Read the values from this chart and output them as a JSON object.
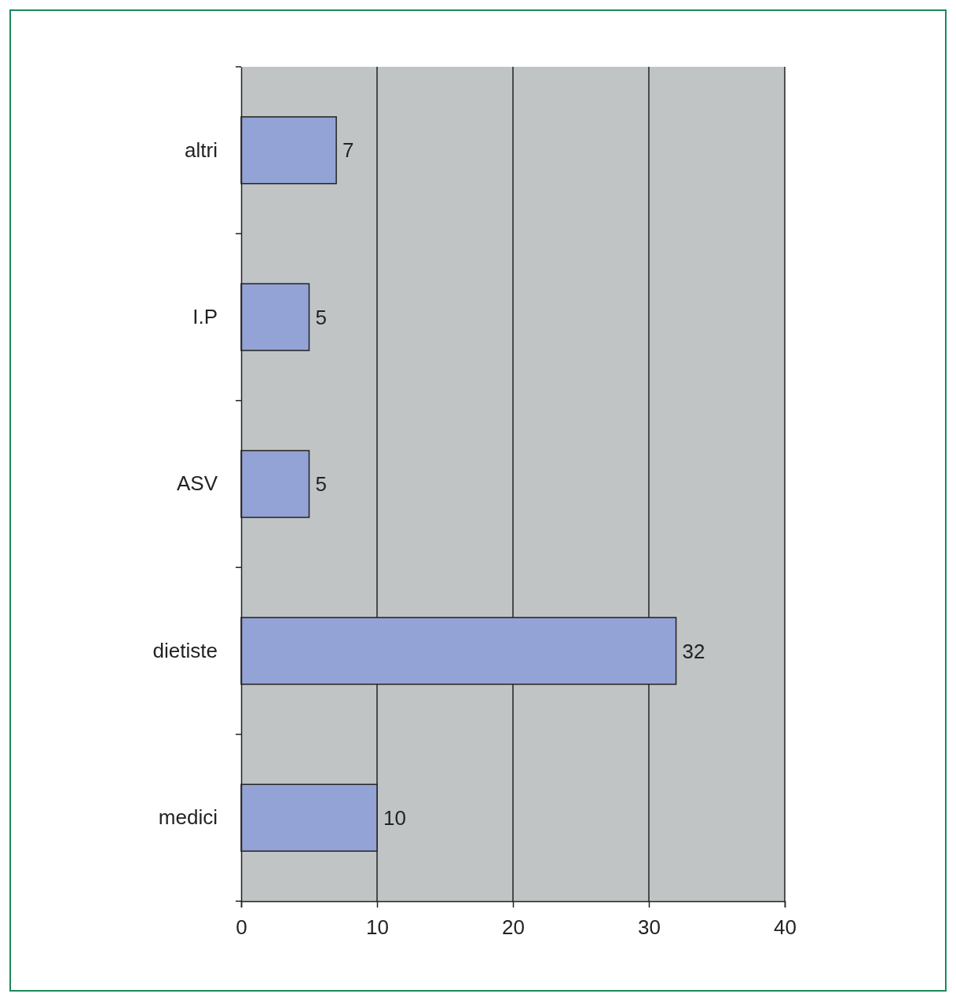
{
  "chart_data": {
    "type": "bar",
    "orientation": "horizontal",
    "categories": [
      "altri",
      "I.P",
      "ASV",
      "dietiste",
      "medici"
    ],
    "values": [
      7,
      5,
      5,
      32,
      10
    ],
    "color": "#94a3d6",
    "xlim": [
      0,
      40
    ],
    "xticks": [
      0,
      10,
      20,
      30,
      40
    ],
    "grid": "x",
    "data_labels": true
  }
}
